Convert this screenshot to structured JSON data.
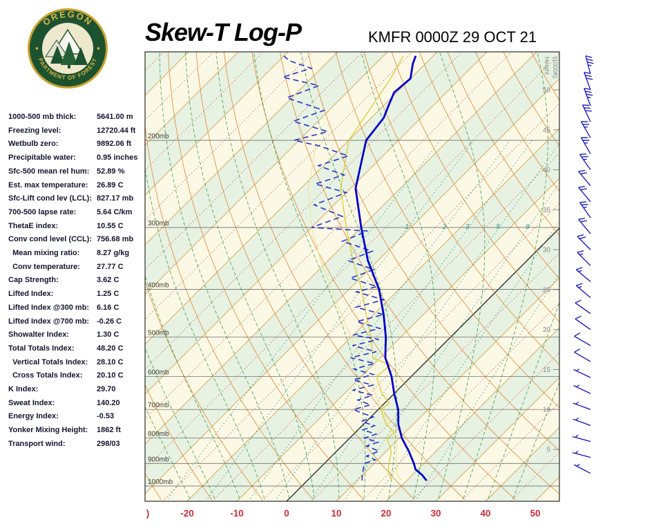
{
  "header": {
    "title": "Skew-T Log-P",
    "station_line": "KMFR 0000Z 29 OCT 21",
    "logo": {
      "top_text": "OREGON",
      "bottom_text": "DEPARTMENT OF FORESTRY"
    }
  },
  "indices": [
    {
      "label": "1000-500 mb thick:",
      "value": "5641.00 m"
    },
    {
      "label": "Freezing level:",
      "value": "12720.44 ft"
    },
    {
      "label": "Wetbulb zero:",
      "value": "9892.06 ft"
    },
    {
      "label": "Precipitable water:",
      "value": "0.95 inches"
    },
    {
      "label": "Sfc-500 mean rel hum:",
      "value": "52.89 %"
    },
    {
      "label": "Est. max temperature:",
      "value": "26.89 C"
    },
    {
      "label": "Sfc-Lift cond lev (LCL):",
      "value": "827.17 mb"
    },
    {
      "label": "700-500 lapse rate:",
      "value": "5.64 C/km"
    },
    {
      "label": "ThetaE index:",
      "value": "10.55 C"
    },
    {
      "label": "Conv cond level (CCL):",
      "value": "756.68 mb"
    },
    {
      "label": "  Mean mixing ratio:",
      "value": "8.27 g/kg"
    },
    {
      "label": "  Conv temperature:",
      "value": "27.77 C"
    },
    {
      "label": "Cap Strength:",
      "value": "3.62 C"
    },
    {
      "label": "Lifted Index:",
      "value": "1.25 C"
    },
    {
      "label": "Lifted Index @300 mb:",
      "value": "6.16 C"
    },
    {
      "label": "Lifted Index @700 mb:",
      "value": "-0.26 C"
    },
    {
      "label": "Showalter Index:",
      "value": "1.30 C"
    },
    {
      "label": "Total Totals Index:",
      "value": "48.20 C"
    },
    {
      "label": "  Vertical Totals Index:",
      "value": "28.10 C"
    },
    {
      "label": "  Cross Totals Index:",
      "value": "20.10 C"
    },
    {
      "label": "K Index:",
      "value": "29.70"
    },
    {
      "label": "Sweat Index:",
      "value": "140.20"
    },
    {
      "label": "Energy Index:",
      "value": "-0.53"
    },
    {
      "label": "Yonker Mixing Height:",
      "value": "1862 ft"
    },
    {
      "label": "Transport wind:",
      "value": "298/03"
    }
  ],
  "chart_data": {
    "type": "skewt-log-p",
    "station": "KMFR",
    "valid_time": "0000Z 29 OCT 21",
    "pressure_levels_mb": [
      200,
      300,
      400,
      500,
      600,
      700,
      800,
      900,
      1000
    ],
    "pressure_label_suffix": "mb",
    "temp_axis": {
      "ticks": [
        -20,
        -10,
        0,
        10,
        20,
        30,
        40,
        50
      ],
      "left_edge_artifact": ")",
      "units": "C"
    },
    "height_axis": {
      "title_line1": "Height",
      "title_line2": "(1000ft)",
      "ticks": [
        5,
        10,
        15,
        20,
        25,
        30,
        35,
        40,
        45,
        50
      ]
    },
    "isotherms": {
      "min": -140,
      "max": 70,
      "solid_step": 10,
      "dotted_step": 5,
      "zero_highlight": true
    },
    "dry_adiabats_C": {
      "min": -30,
      "max": 170,
      "step": 10
    },
    "moist_adiabats_startC": {
      "min": -20,
      "max": 45,
      "step": 5
    },
    "mixing_ratio_lines_gkg": [
      0.5,
      1,
      2,
      3,
      5,
      8,
      12,
      20
    ],
    "mixing_ratio_labels": [
      1,
      2,
      3,
      5,
      8
    ],
    "temperature_profile_P_T": [
      [
        975,
        24
      ],
      [
        950,
        22
      ],
      [
        925,
        19.5
      ],
      [
        900,
        18
      ],
      [
        850,
        14.5
      ],
      [
        800,
        10.5
      ],
      [
        750,
        7
      ],
      [
        700,
        4
      ],
      [
        650,
        0
      ],
      [
        600,
        -4
      ],
      [
        550,
        -9
      ],
      [
        500,
        -13
      ],
      [
        450,
        -18
      ],
      [
        400,
        -24
      ],
      [
        350,
        -32
      ],
      [
        300,
        -40
      ],
      [
        250,
        -49
      ],
      [
        200,
        -56.5
      ],
      [
        180,
        -57.5
      ],
      [
        170,
        -59
      ],
      [
        160,
        -60.5
      ],
      [
        150,
        -60
      ],
      [
        140,
        -62.5
      ],
      [
        135,
        -63.5
      ]
    ],
    "dewpoint_profile_P_T": [
      [
        975,
        11
      ],
      [
        950,
        10
      ],
      [
        925,
        9
      ],
      [
        900,
        8
      ],
      [
        885,
        9.5
      ],
      [
        870,
        7
      ],
      [
        850,
        8.5
      ],
      [
        830,
        5
      ],
      [
        815,
        6.5
      ],
      [
        800,
        3
      ],
      [
        785,
        4.5
      ],
      [
        770,
        1
      ],
      [
        755,
        2.5
      ],
      [
        740,
        -1
      ],
      [
        725,
        0.5
      ],
      [
        710,
        -3
      ],
      [
        700,
        -5
      ],
      [
        685,
        -2.5
      ],
      [
        670,
        -6
      ],
      [
        655,
        -4
      ],
      [
        640,
        -9
      ],
      [
        625,
        -6
      ],
      [
        610,
        -11
      ],
      [
        595,
        -8
      ],
      [
        580,
        -13
      ],
      [
        565,
        -10
      ],
      [
        550,
        -16
      ],
      [
        535,
        -12
      ],
      [
        520,
        -18
      ],
      [
        505,
        -14
      ],
      [
        495,
        -20
      ],
      [
        480,
        -16
      ],
      [
        465,
        -22
      ],
      [
        450,
        -18
      ],
      [
        435,
        -25
      ],
      [
        420,
        -21
      ],
      [
        405,
        -28
      ],
      [
        395,
        -25
      ],
      [
        380,
        -32
      ],
      [
        365,
        -29
      ],
      [
        350,
        -36
      ],
      [
        335,
        -33
      ],
      [
        320,
        -41
      ],
      [
        305,
        -38
      ],
      [
        300,
        -50
      ],
      [
        285,
        -46
      ],
      [
        270,
        -54
      ],
      [
        255,
        -50
      ],
      [
        245,
        -58
      ],
      [
        235,
        -54
      ],
      [
        225,
        -61
      ],
      [
        215,
        -57
      ],
      [
        205,
        -65
      ],
      [
        200,
        -71
      ],
      [
        192,
        -66
      ],
      [
        183,
        -75
      ],
      [
        174,
        -71
      ],
      [
        164,
        -81
      ],
      [
        155,
        -77
      ],
      [
        149,
        -86
      ],
      [
        143,
        -82
      ],
      [
        138,
        -88
      ],
      [
        135,
        -90
      ]
    ],
    "wetbulb_profile_P_T": [
      [
        975,
        17
      ],
      [
        950,
        15.5
      ],
      [
        925,
        14
      ],
      [
        900,
        13
      ],
      [
        850,
        11
      ],
      [
        800,
        7.5
      ],
      [
        780,
        8
      ],
      [
        750,
        4.5
      ],
      [
        700,
        0.5
      ],
      [
        680,
        1
      ],
      [
        650,
        -2.5
      ],
      [
        600,
        -7
      ],
      [
        570,
        -6.5
      ],
      [
        550,
        -11.5
      ],
      [
        500,
        -16
      ],
      [
        450,
        -21.5
      ],
      [
        400,
        -27.5
      ],
      [
        350,
        -35
      ],
      [
        300,
        -43
      ],
      [
        250,
        -52
      ],
      [
        200,
        -60
      ],
      [
        150,
        -64
      ],
      [
        135,
        -66
      ]
    ],
    "parcel_profile_P_T": [
      [
        975,
        19
      ],
      [
        950,
        17
      ],
      [
        900,
        14.5
      ],
      [
        850,
        12
      ],
      [
        827,
        11
      ],
      [
        800,
        9
      ],
      [
        750,
        5
      ],
      [
        700,
        0.8
      ],
      [
        650,
        -3.8
      ],
      [
        600,
        -8.8
      ],
      [
        550,
        -14.2
      ],
      [
        500,
        -20
      ],
      [
        450,
        -26.5
      ],
      [
        400,
        -33.5
      ],
      [
        350,
        -41.5
      ],
      [
        300,
        -50
      ],
      [
        250,
        -58.5
      ],
      [
        200,
        -66.5
      ]
    ],
    "wind_barbs_kft_dir_spd": [
      [
        2,
        298,
        3
      ],
      [
        4,
        285,
        5
      ],
      [
        6,
        285,
        5
      ],
      [
        8,
        290,
        5
      ],
      [
        10,
        290,
        5
      ],
      [
        12,
        295,
        5
      ],
      [
        14,
        295,
        5
      ],
      [
        16,
        300,
        10
      ],
      [
        18,
        300,
        10
      ],
      [
        20,
        305,
        10
      ],
      [
        22,
        305,
        10
      ],
      [
        24,
        310,
        15
      ],
      [
        26,
        310,
        15
      ],
      [
        28,
        315,
        15
      ],
      [
        30,
        315,
        20
      ],
      [
        32,
        320,
        20
      ],
      [
        34,
        325,
        25
      ],
      [
        36,
        320,
        20
      ],
      [
        38,
        320,
        20
      ],
      [
        40,
        325,
        25
      ],
      [
        42,
        330,
        25
      ],
      [
        44,
        330,
        25
      ],
      [
        46,
        335,
        30
      ],
      [
        48,
        340,
        35
      ],
      [
        50,
        340,
        30
      ],
      [
        52,
        345,
        35
      ]
    ],
    "colors": {
      "temperature": "#0000cd",
      "dewpoint": "#2233cc",
      "wetbulb": "#d9c822",
      "parcel": "#efe49a",
      "isotherm": "#d2a24f",
      "zero_isotherm": "#111111",
      "isotherm_dotted": "#c2574a",
      "dry_adiabat": "#e0862c",
      "moist_adiabat": "#3f9d46",
      "mixing_ratio": "#2e9e82",
      "pressure_line": "#5a5a5a",
      "pressure_labels": "#3d3d2f",
      "axis_temp_labels": "#cf2b3a",
      "height_labels": "#8a8a8a",
      "wind_barbs": "#1111bb",
      "band_green": "#e7f2e3",
      "band_cream": "#fcf8e6",
      "border": "#000000"
    }
  }
}
